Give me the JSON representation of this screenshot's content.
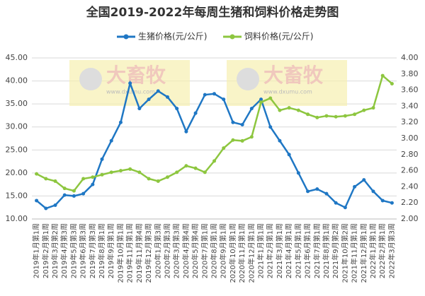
{
  "chart_data": {
    "type": "line",
    "title": "全国2019-2022年每周生猪和饲料价格走势图",
    "watermarks": [
      {
        "brand": "大畜牧",
        "url": "www.dxumu.com"
      },
      {
        "brand": "大畜牧",
        "url": "www.dxumu.com"
      }
    ],
    "categories": [
      "2019年1月第1周",
      "2019年2月第1周",
      "2019年3月第2周",
      "2019年4月第3周",
      "2019年5月第3周",
      "2019年6月第3周",
      "2019年7月第3周",
      "2019年8月第1周",
      "2019年9月第1周",
      "2019年10月第1周",
      "2019年11月第1周",
      "2019年11月第4周",
      "2019年12月第3周",
      "2020年1月第3周",
      "2020年2月第3周",
      "2020年3月第3周",
      "2020年4月第4周",
      "2020年5月第4周",
      "2020年7月第1周",
      "2020年8月第1周",
      "2020年9月第1周",
      "2020年10月第1周",
      "2020年11月第1周",
      "2020年12月第1周",
      "2021年1月第1周",
      "2021年2月第1周",
      "2021年3月第1周",
      "2021年4月第1周",
      "2021年5月第1周",
      "2021年6月第1周",
      "2021年7月第1周",
      "2021年8月第1周",
      "2021年9月第2周",
      "2021年10月第2周",
      "2021年11月第1周",
      "2021年12月第1周",
      "2022年1月第1周",
      "2022年2月第1周",
      "2022年3月第3周"
    ],
    "series": [
      {
        "name": "生猪价格(元/公斤)",
        "color": "#1f77c4",
        "values": [
          14,
          12.3,
          13,
          15.2,
          15,
          15.5,
          17.5,
          23,
          27,
          31,
          39.5,
          34,
          36,
          37.8,
          36.5,
          34,
          29,
          33,
          37,
          37.2,
          36,
          31,
          30.5,
          34,
          36,
          30,
          27,
          24,
          20,
          16,
          16.5,
          15.5,
          13.5,
          12.5,
          17,
          18.5,
          16,
          14,
          13.5
        ]
      },
      {
        "name": "饲料价格(元/公斤)",
        "color": "#8dc63f",
        "axis": "y2",
        "values": [
          2.56,
          2.5,
          2.47,
          2.38,
          2.35,
          2.5,
          2.52,
          2.55,
          2.58,
          2.6,
          2.62,
          2.58,
          2.5,
          2.47,
          2.52,
          2.58,
          2.66,
          2.63,
          2.58,
          2.72,
          2.88,
          2.98,
          2.97,
          3.02,
          3.45,
          3.5,
          3.35,
          3.38,
          3.35,
          3.3,
          3.26,
          3.28,
          3.27,
          3.28,
          3.3,
          3.35,
          3.38,
          3.78,
          3.68
        ]
      }
    ],
    "ylim": [
      10,
      45
    ],
    "yticks": [
      {
        "value": 10,
        "label": "10.00"
      },
      {
        "value": 15,
        "label": "15.00"
      },
      {
        "value": 20,
        "label": "20.00"
      },
      {
        "value": 25,
        "label": "25.00"
      },
      {
        "value": 30,
        "label": "30.00"
      },
      {
        "value": 35,
        "label": "35.00"
      },
      {
        "value": 40,
        "label": "40.00"
      },
      {
        "value": 45,
        "label": "45.00"
      }
    ],
    "y2lim": [
      2,
      4
    ],
    "y2ticks": [
      {
        "value": 2,
        "label": "2.00"
      },
      {
        "value": 2.2,
        "label": "2.20"
      },
      {
        "value": 2.4,
        "label": "2.40"
      },
      {
        "value": 2.6,
        "label": "2.60"
      },
      {
        "value": 2.8,
        "label": "2.80"
      },
      {
        "value": 3,
        "label": "3.00"
      },
      {
        "value": 3.2,
        "label": "3.20"
      },
      {
        "value": 3.4,
        "label": "3.40"
      },
      {
        "value": 3.6,
        "label": "3.60"
      },
      {
        "value": 3.8,
        "label": "3.80"
      },
      {
        "value": 4,
        "label": "4.00"
      }
    ],
    "grid": true,
    "legend": "top"
  }
}
